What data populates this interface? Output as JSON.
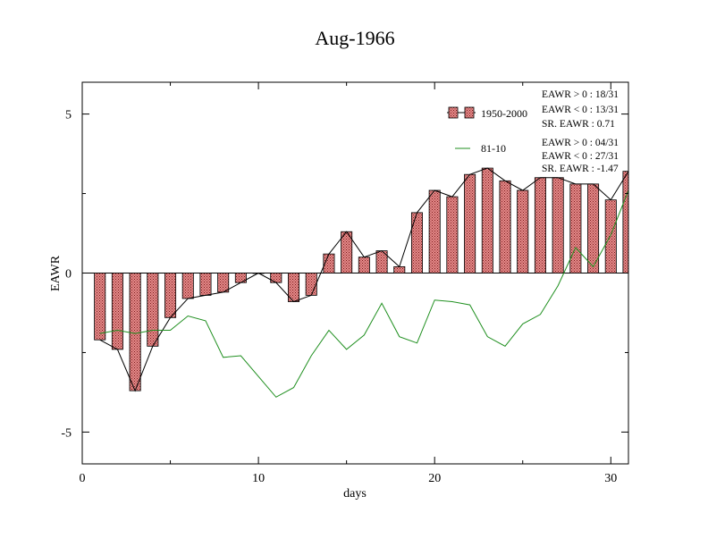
{
  "chart_data": {
    "type": "bar",
    "title": "Aug-1966",
    "xlabel": "days",
    "ylabel": "EAWR",
    "xlim": [
      0,
      31
    ],
    "ylim": [
      -6,
      6
    ],
    "xticks": [
      0,
      10,
      20,
      30
    ],
    "yticks": [
      -5,
      0,
      5
    ],
    "grid": false,
    "legend_position": "top-right",
    "colors": {
      "bar_fill": "#e07a7a",
      "bar_hatch": "#8b1a1a",
      "bar_line": "#000000",
      "line_series": "#1f8f1f"
    },
    "x": [
      1,
      2,
      3,
      4,
      5,
      6,
      7,
      8,
      9,
      10,
      11,
      12,
      13,
      14,
      15,
      16,
      17,
      18,
      19,
      20,
      21,
      22,
      23,
      24,
      25,
      26,
      27,
      28,
      29,
      30,
      31
    ],
    "series": [
      {
        "name": "1950-2000",
        "kind": "bar",
        "values": [
          -2.1,
          -2.4,
          -3.7,
          -2.3,
          -1.4,
          -0.8,
          -0.7,
          -0.6,
          -0.3,
          0.0,
          -0.3,
          -0.9,
          -0.7,
          0.6,
          1.3,
          0.5,
          0.7,
          0.2,
          1.9,
          2.6,
          2.4,
          3.1,
          3.3,
          2.9,
          2.6,
          3.0,
          3.0,
          2.8,
          2.8,
          2.3,
          3.2
        ]
      },
      {
        "name": "81-10",
        "kind": "line",
        "values": [
          -1.9,
          -1.8,
          -1.9,
          -1.8,
          -1.8,
          -1.35,
          -1.5,
          -2.65,
          -2.6,
          -3.25,
          -3.9,
          -3.6,
          -2.6,
          -1.8,
          -2.4,
          -1.95,
          -0.95,
          -2.0,
          -2.2,
          -0.85,
          -0.9,
          -1.0,
          -2.0,
          -2.3,
          -1.6,
          -1.3,
          -0.4,
          0.8,
          0.2,
          1.2,
          2.6
        ]
      }
    ],
    "stats": [
      [
        "EAWR > 0 : 18/31",
        "EAWR < 0 : 13/31",
        "SR. EAWR :  0.71"
      ],
      [
        "EAWR > 0 : 04/31",
        "EAWR < 0 : 27/31",
        "SR. EAWR : -1.47"
      ]
    ]
  }
}
